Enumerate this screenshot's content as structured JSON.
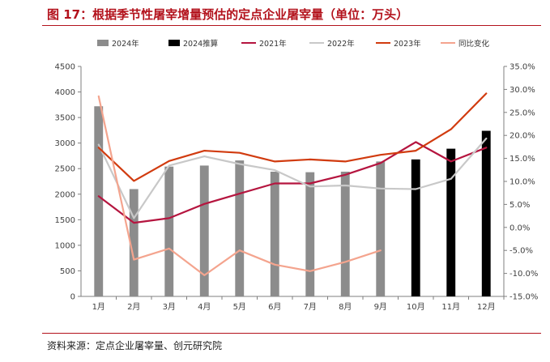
{
  "title": "图 17：根据季节性屠宰增量预估的定点企业屠宰量（单位：万头）",
  "source": "资料来源：定点企业屠宰量、创元研究院",
  "legend": [
    {
      "name": "2024年",
      "kind": "bar",
      "color": "#8c8c8c"
    },
    {
      "name": "2024推算",
      "kind": "bar",
      "color": "#000000"
    },
    {
      "name": "2021年",
      "kind": "line",
      "color": "#b5153f"
    },
    {
      "name": "2022年",
      "kind": "line",
      "color": "#c8c8c8"
    },
    {
      "name": "2023年",
      "kind": "line",
      "color": "#d13b0f"
    },
    {
      "name": "同比变化",
      "kind": "line",
      "color": "#f4a48e"
    }
  ],
  "chart_data": {
    "type": "bar",
    "categories": [
      "1月",
      "2月",
      "3月",
      "4月",
      "5月",
      "6月",
      "7月",
      "8月",
      "9月",
      "10月",
      "11月",
      "12月"
    ],
    "ylim": [
      0,
      4500
    ],
    "yticks": [
      "0",
      "500",
      "1000",
      "1500",
      "2000",
      "2500",
      "3000",
      "3500",
      "4000",
      "4500"
    ],
    "y2lim": [
      -15,
      35
    ],
    "y2ticks": [
      "-15.0%",
      "-10.0%",
      "-5.0%",
      "0.0%",
      "5.0%",
      "10.0%",
      "15.0%",
      "20.0%",
      "25.0%",
      "30.0%",
      "35.0%"
    ],
    "series": [
      {
        "name": "2024年",
        "type": "bar",
        "axis": "left",
        "color": "#8c8c8c",
        "values": [
          3720,
          2100,
          2540,
          2560,
          2660,
          2440,
          2430,
          2440,
          2640,
          null,
          null,
          null
        ]
      },
      {
        "name": "2024推算",
        "type": "bar",
        "axis": "left",
        "color": "#000000",
        "values": [
          null,
          null,
          null,
          null,
          null,
          null,
          null,
          null,
          null,
          2680,
          2890,
          3240
        ]
      },
      {
        "name": "2021年",
        "type": "line",
        "axis": "left",
        "color": "#b5153f",
        "values": [
          1960,
          1440,
          1530,
          1810,
          2010,
          2210,
          2210,
          2380,
          2610,
          3020,
          2640,
          2910
        ]
      },
      {
        "name": "2022年",
        "type": "line",
        "axis": "left",
        "color": "#c8c8c8",
        "values": [
          2970,
          1530,
          2560,
          2740,
          2590,
          2470,
          2150,
          2170,
          2110,
          2100,
          2300,
          3090
        ]
      },
      {
        "name": "2023年",
        "type": "line",
        "axis": "left",
        "color": "#d13b0f",
        "values": [
          2910,
          2260,
          2650,
          2850,
          2810,
          2640,
          2680,
          2640,
          2770,
          2850,
          3270,
          3970
        ]
      },
      {
        "name": "同比变化",
        "type": "line",
        "axis": "right",
        "color": "#f4a48e",
        "values": [
          28.5,
          -7.0,
          -4.6,
          -10.4,
          -5.0,
          -8.1,
          -9.5,
          -7.5,
          -5.0,
          null,
          null,
          null
        ]
      }
    ]
  }
}
